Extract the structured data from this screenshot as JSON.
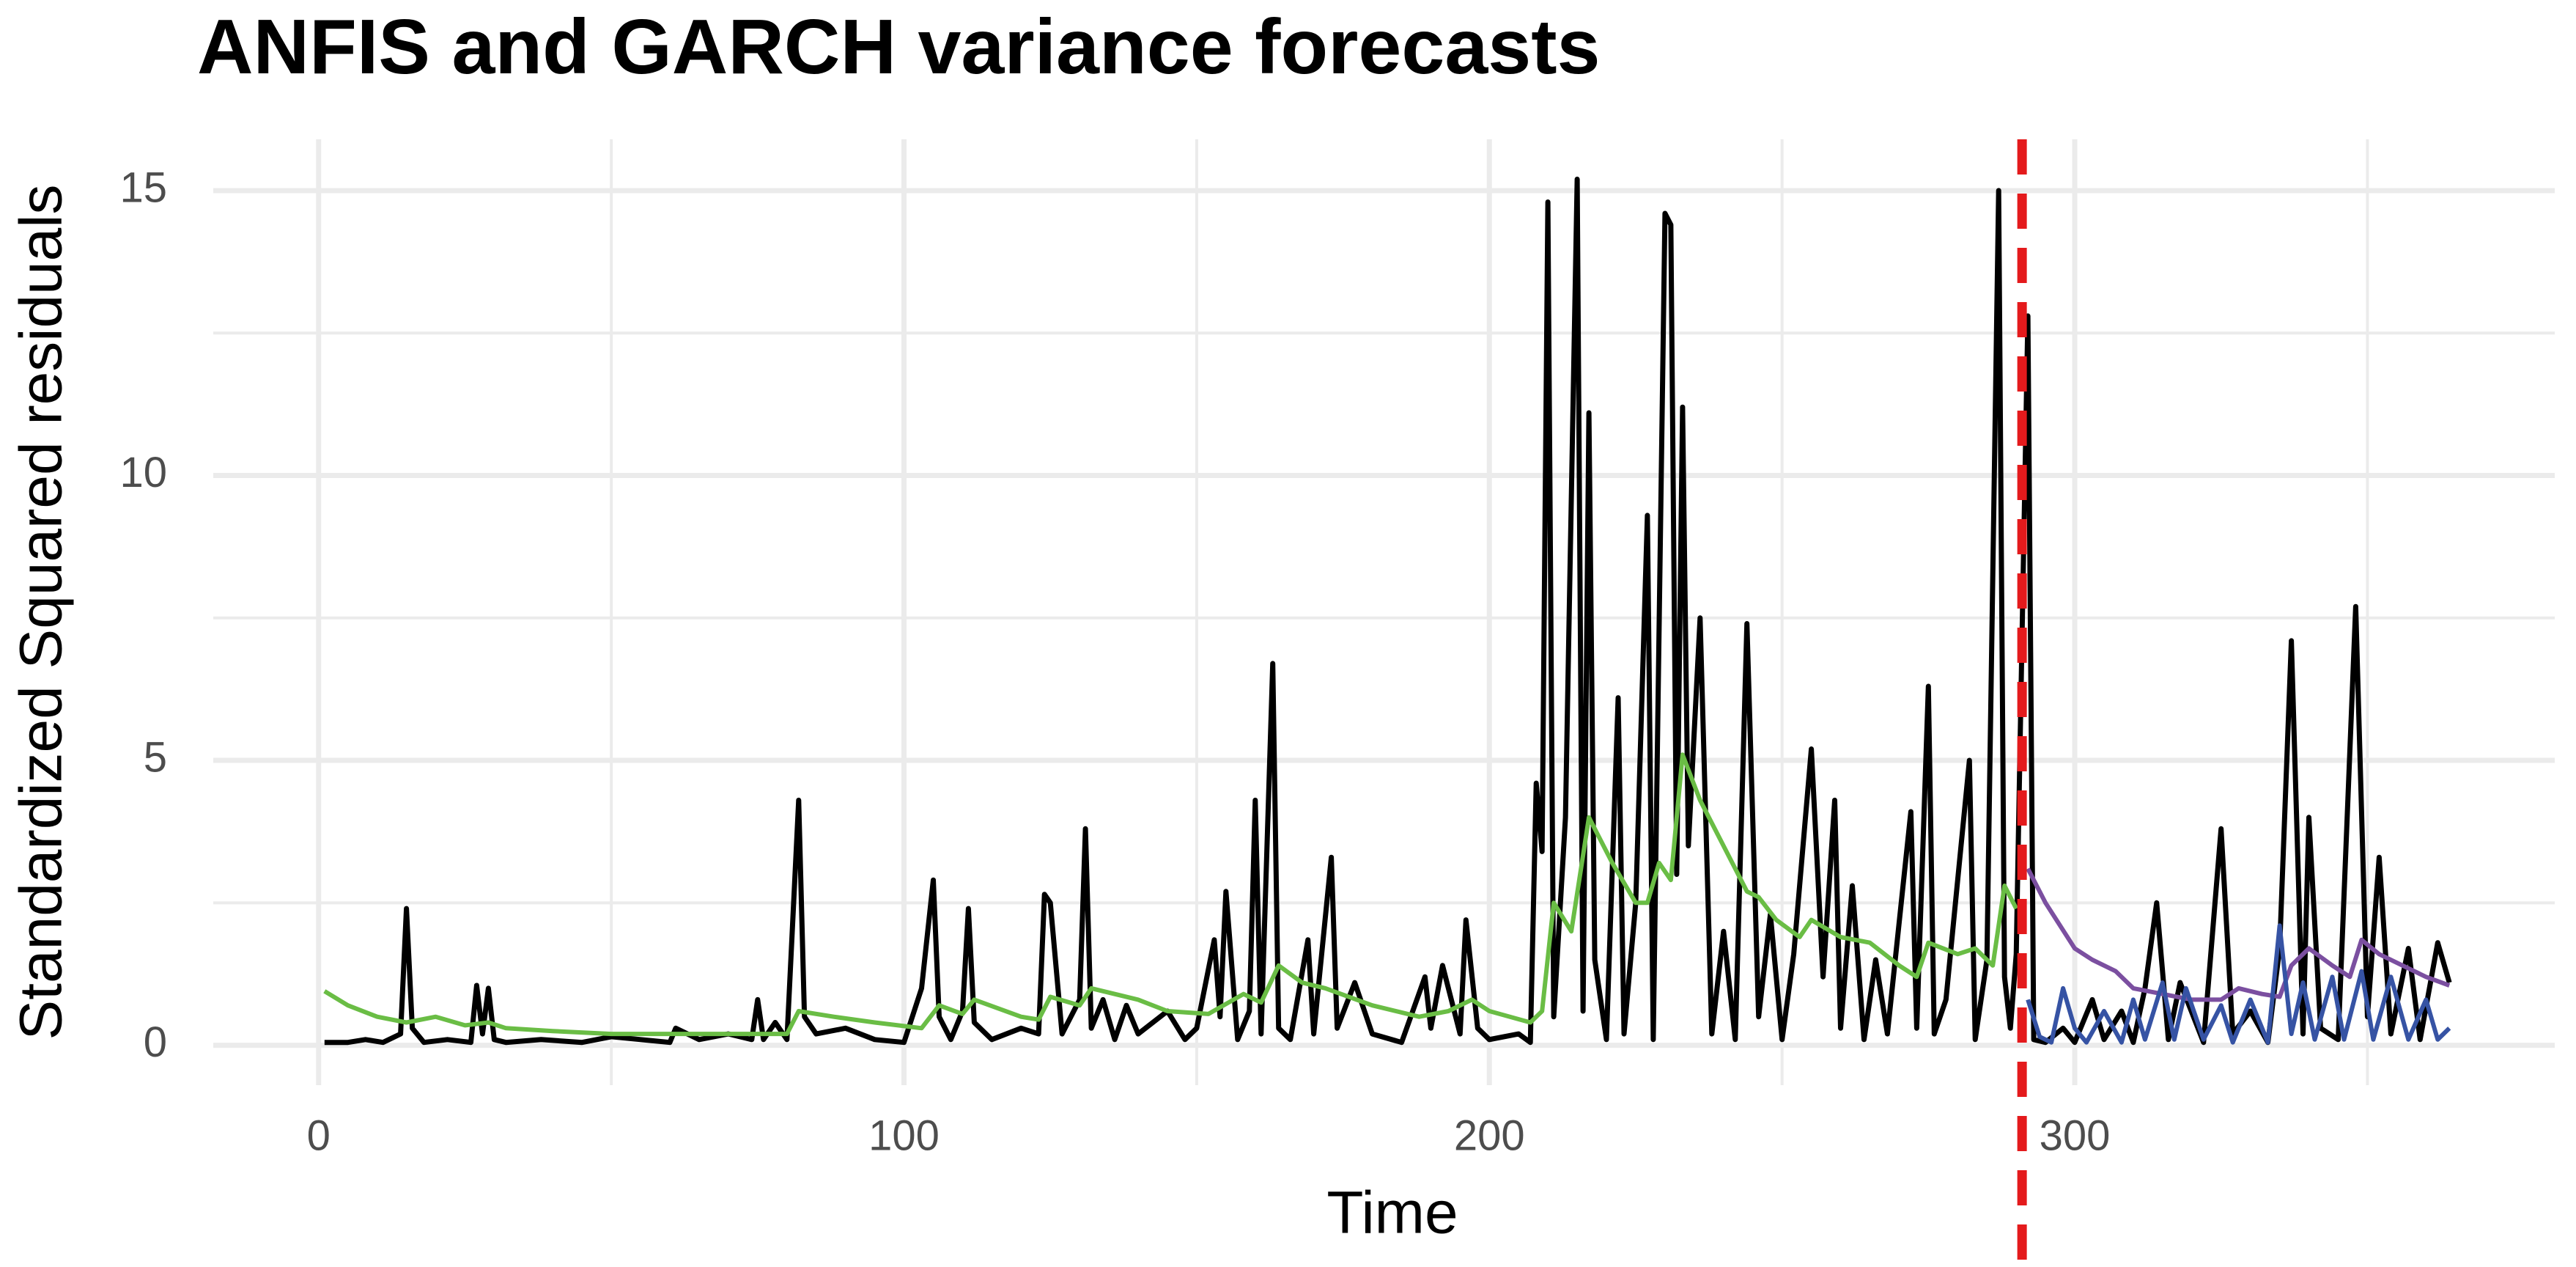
{
  "chart_data": {
    "type": "line",
    "title": "ANFIS and GARCH variance forecasts",
    "x_label": "Time",
    "y_label": "Standardized Squared residuals",
    "xlim": [
      -18,
      382
    ],
    "ylim": [
      -0.7,
      15.9
    ],
    "xticks": [
      0,
      100,
      200,
      300
    ],
    "yticks": [
      0,
      5,
      10,
      15
    ],
    "x_minor_ticks": [
      50,
      150,
      250,
      350
    ],
    "y_minor_ticks": [
      2.5,
      7.5,
      12.5
    ],
    "grid": true,
    "vline": {
      "x": 291,
      "color": "#e41a1c"
    },
    "series": [
      {
        "color": "#000000",
        "x": [
          1,
          5,
          8,
          11,
          14,
          15,
          16,
          18,
          22,
          26,
          27,
          28,
          29,
          30,
          32,
          38,
          45,
          50,
          55,
          60,
          61,
          65,
          70,
          74,
          75,
          76,
          78,
          80,
          82,
          83,
          85,
          90,
          95,
          100,
          103,
          105,
          106,
          108,
          110,
          111,
          112,
          115,
          120,
          123,
          124,
          125,
          127,
          130,
          131,
          132,
          134,
          136,
          138,
          140,
          145,
          148,
          150,
          153,
          154,
          155,
          157,
          159,
          160,
          161,
          163,
          164,
          166,
          169,
          170,
          173,
          174,
          177,
          180,
          185,
          189,
          190,
          192,
          195,
          196,
          198,
          200,
          205,
          207,
          208,
          209,
          210,
          211,
          213,
          215,
          216,
          217,
          218,
          220,
          222,
          223,
          225,
          227,
          228,
          230,
          231,
          232,
          233,
          234,
          236,
          238,
          240,
          242,
          244,
          246,
          248,
          250,
          252,
          255,
          257,
          259,
          260,
          262,
          264,
          266,
          268,
          272,
          273,
          275,
          276,
          278,
          282,
          283,
          285,
          287,
          288,
          289,
          290,
          292,
          293,
          295,
          298,
          300,
          303,
          305,
          308,
          310,
          312,
          314,
          316,
          318,
          322,
          325,
          327,
          330,
          333,
          335,
          337,
          339,
          340,
          342,
          345,
          348,
          350,
          352,
          354,
          357,
          359,
          362,
          364
        ],
        "values": [
          0.05,
          0.05,
          0.1,
          0.05,
          0.2,
          2.4,
          0.3,
          0.05,
          0.1,
          0.05,
          1.05,
          0.2,
          1.0,
          0.1,
          0.05,
          0.1,
          0.05,
          0.15,
          0.1,
          0.05,
          0.3,
          0.1,
          0.2,
          0.1,
          0.8,
          0.1,
          0.4,
          0.1,
          4.3,
          0.5,
          0.2,
          0.3,
          0.1,
          0.05,
          1.0,
          2.9,
          0.5,
          0.1,
          0.6,
          2.4,
          0.4,
          0.1,
          0.3,
          0.2,
          2.65,
          2.5,
          0.2,
          0.8,
          3.8,
          0.3,
          0.8,
          0.1,
          0.7,
          0.2,
          0.6,
          0.1,
          0.3,
          1.85,
          0.5,
          2.7,
          0.1,
          0.6,
          4.3,
          0.2,
          6.7,
          0.3,
          0.1,
          1.85,
          0.2,
          3.3,
          0.3,
          1.1,
          0.2,
          0.05,
          1.2,
          0.3,
          1.4,
          0.2,
          2.2,
          0.3,
          0.1,
          0.2,
          0.05,
          4.6,
          3.4,
          14.8,
          0.5,
          4.0,
          15.2,
          0.6,
          11.1,
          1.5,
          0.1,
          6.1,
          0.2,
          2.5,
          9.3,
          0.1,
          14.6,
          14.4,
          3.0,
          11.2,
          3.5,
          7.5,
          0.2,
          2.0,
          0.1,
          7.4,
          0.5,
          2.3,
          0.1,
          1.6,
          5.2,
          1.2,
          4.3,
          0.3,
          2.8,
          0.1,
          1.5,
          0.2,
          4.1,
          0.3,
          6.3,
          0.2,
          0.8,
          5.0,
          0.1,
          1.5,
          15.0,
          1.2,
          0.3,
          1.6,
          12.8,
          0.1,
          0.05,
          0.3,
          0.05,
          0.8,
          0.1,
          0.6,
          0.05,
          1.0,
          2.5,
          0.1,
          1.1,
          0.05,
          3.8,
          0.2,
          0.6,
          0.05,
          1.7,
          7.1,
          0.2,
          4.0,
          0.3,
          0.1,
          7.7,
          0.5,
          3.3,
          0.2,
          1.7,
          0.1,
          1.8,
          1.1
        ]
      },
      {
        "color": "#6abd45",
        "x": [
          1,
          5,
          10,
          15,
          20,
          25,
          29,
          32,
          40,
          50,
          60,
          70,
          80,
          82,
          88,
          95,
          103,
          106,
          110,
          112,
          120,
          123,
          125,
          130,
          132,
          140,
          145,
          152,
          158,
          161,
          164,
          168,
          172,
          180,
          188,
          193,
          197,
          200,
          207,
          209,
          211,
          214,
          217,
          221,
          225,
          227,
          229,
          231,
          233,
          236,
          240,
          244,
          246,
          249,
          253,
          255,
          260,
          265,
          270,
          273,
          275,
          280,
          283,
          286,
          288,
          290
        ],
        "values": [
          0.95,
          0.7,
          0.5,
          0.4,
          0.5,
          0.35,
          0.4,
          0.3,
          0.25,
          0.2,
          0.2,
          0.2,
          0.2,
          0.6,
          0.5,
          0.4,
          0.3,
          0.7,
          0.55,
          0.8,
          0.5,
          0.45,
          0.85,
          0.7,
          1.0,
          0.8,
          0.6,
          0.55,
          0.9,
          0.75,
          1.4,
          1.1,
          1.0,
          0.7,
          0.5,
          0.6,
          0.8,
          0.6,
          0.4,
          0.6,
          2.5,
          2.0,
          4.0,
          3.2,
          2.5,
          2.5,
          3.2,
          2.9,
          5.1,
          4.3,
          3.5,
          2.7,
          2.6,
          2.2,
          1.9,
          2.2,
          1.9,
          1.8,
          1.4,
          1.2,
          1.8,
          1.6,
          1.7,
          1.4,
          2.8,
          2.4
        ]
      },
      {
        "color": "#7b4fa0",
        "x": [
          292,
          295,
          300,
          303,
          307,
          310,
          315,
          320,
          325,
          328,
          332,
          335,
          337,
          340,
          344,
          347,
          349,
          352,
          356,
          360,
          364
        ],
        "values": [
          3.1,
          2.5,
          1.7,
          1.5,
          1.3,
          1.0,
          0.9,
          0.8,
          0.8,
          1.0,
          0.9,
          0.85,
          1.4,
          1.7,
          1.4,
          1.2,
          1.85,
          1.6,
          1.4,
          1.2,
          1.05
        ]
      },
      {
        "color": "#3653a4",
        "x": [
          292,
          294,
          296,
          298,
          300,
          302,
          305,
          308,
          310,
          312,
          315,
          317,
          319,
          322,
          325,
          327,
          330,
          333,
          335,
          337,
          339,
          341,
          344,
          346,
          349,
          351,
          354,
          357,
          360,
          362,
          364
        ],
        "values": [
          0.8,
          0.15,
          0.05,
          1.0,
          0.3,
          0.05,
          0.6,
          0.05,
          0.8,
          0.1,
          1.1,
          0.1,
          1.0,
          0.1,
          0.7,
          0.05,
          0.8,
          0.05,
          2.1,
          0.2,
          1.1,
          0.1,
          1.2,
          0.1,
          1.3,
          0.1,
          1.2,
          0.1,
          0.8,
          0.1,
          0.3
        ]
      }
    ]
  }
}
